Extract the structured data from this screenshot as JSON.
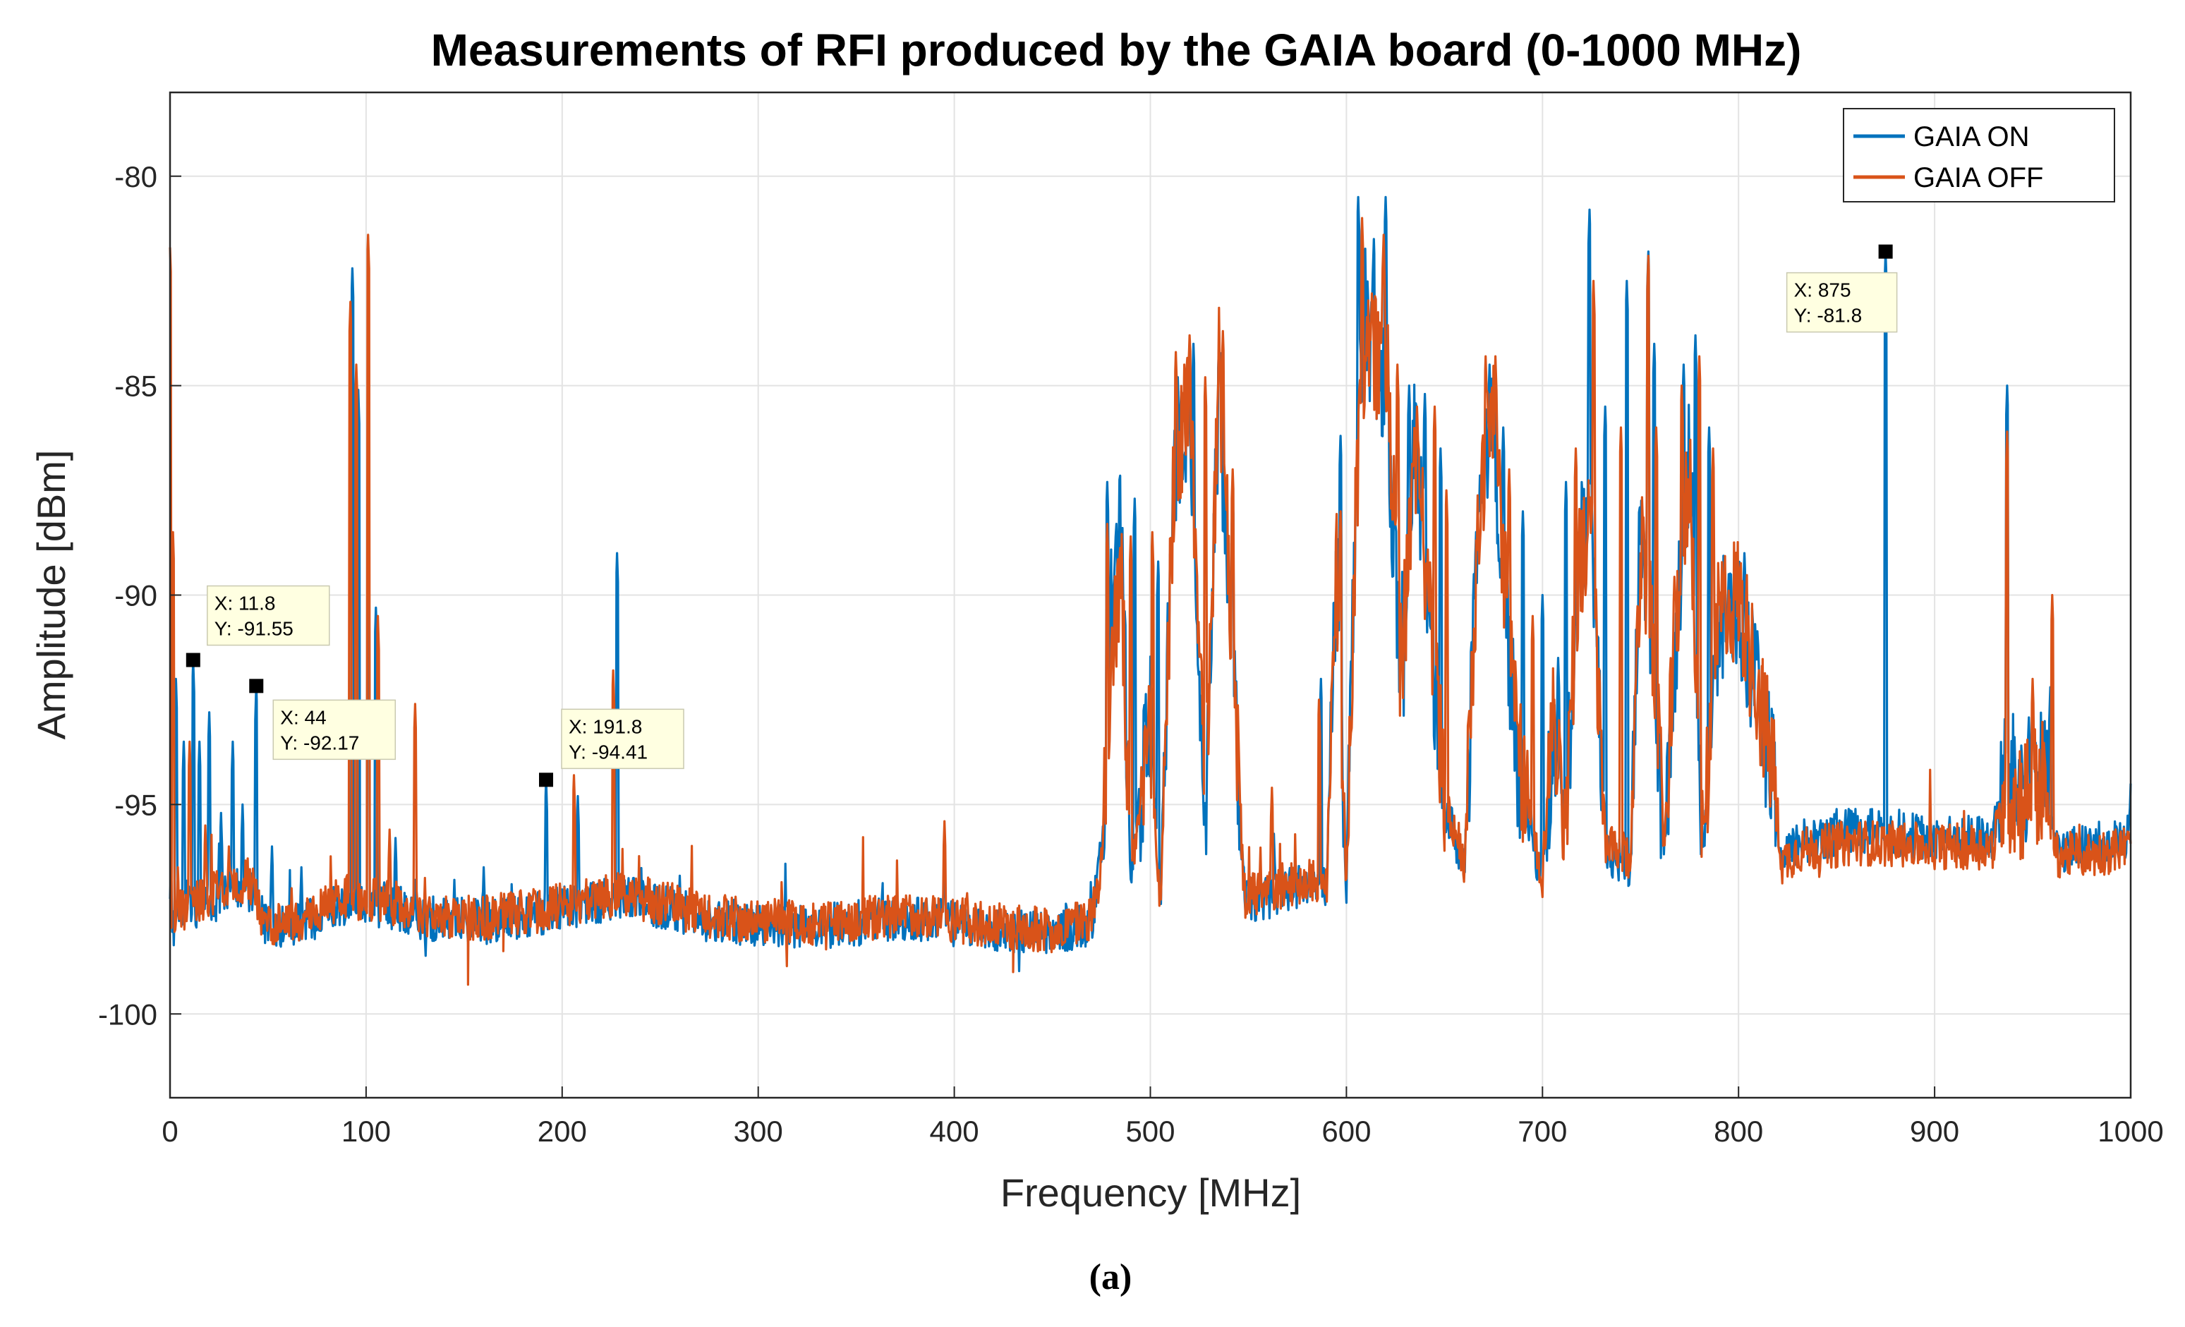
{
  "chart_data": {
    "type": "line",
    "title": "Measurements of RFI produced by the GAIA board (0-1000 MHz)",
    "xlabel": "Frequency [MHz]",
    "ylabel": "Amplitude [dBm]",
    "xlim": [
      0,
      1000
    ],
    "ylim": [
      -102,
      -78
    ],
    "xticks": [
      0,
      100,
      200,
      300,
      400,
      500,
      600,
      700,
      800,
      900,
      1000
    ],
    "yticks": [
      -80,
      -85,
      -90,
      -95,
      -100
    ],
    "grid": true,
    "legend_position": "top-right",
    "caption": "(a)",
    "series": [
      {
        "name": "GAIA ON",
        "color": "#0072BD",
        "baseline": [
          [
            0,
            -98.2
          ],
          [
            8,
            -97.5
          ],
          [
            20,
            -97.3
          ],
          [
            40,
            -97.0
          ],
          [
            50,
            -98.0
          ],
          [
            70,
            -97.8
          ],
          [
            90,
            -97.3
          ],
          [
            110,
            -97.4
          ],
          [
            130,
            -97.7
          ],
          [
            160,
            -97.8
          ],
          [
            190,
            -97.6
          ],
          [
            230,
            -97.2
          ],
          [
            280,
            -97.8
          ],
          [
            330,
            -97.9
          ],
          [
            380,
            -97.7
          ],
          [
            420,
            -98.0
          ],
          [
            450,
            -98.1
          ],
          [
            470,
            -97.8
          ],
          [
            475,
            -96.2
          ],
          [
            480,
            -90.5
          ],
          [
            485,
            -88.5
          ],
          [
            490,
            -96.5
          ],
          [
            500,
            -93.0
          ],
          [
            505,
            -97.5
          ],
          [
            512,
            -87.0
          ],
          [
            520,
            -85.5
          ],
          [
            528,
            -95.5
          ],
          [
            535,
            -85.0
          ],
          [
            540,
            -90.0
          ],
          [
            548,
            -97.3
          ],
          [
            560,
            -97.2
          ],
          [
            570,
            -97.0
          ],
          [
            590,
            -96.9
          ],
          [
            595,
            -89.0
          ],
          [
            600,
            -97.0
          ],
          [
            605,
            -87.0
          ],
          [
            610,
            -83.0
          ],
          [
            615,
            -85.0
          ],
          [
            620,
            -84.5
          ],
          [
            628,
            -92.5
          ],
          [
            635,
            -86.0
          ],
          [
            642,
            -90.5
          ],
          [
            650,
            -95.0
          ],
          [
            660,
            -96.5
          ],
          [
            668,
            -88.0
          ],
          [
            675,
            -86.0
          ],
          [
            680,
            -89.5
          ],
          [
            688,
            -94.5
          ],
          [
            700,
            -96.8
          ],
          [
            705,
            -93.5
          ],
          [
            712,
            -95.5
          ],
          [
            718,
            -89.0
          ],
          [
            725,
            -88.0
          ],
          [
            732,
            -96.2
          ],
          [
            745,
            -96.5
          ],
          [
            750,
            -88.0
          ],
          [
            756,
            -91.5
          ],
          [
            762,
            -96.2
          ],
          [
            768,
            -91.0
          ],
          [
            775,
            -86.5
          ],
          [
            782,
            -96.0
          ],
          [
            790,
            -90.8
          ],
          [
            800,
            -90.2
          ],
          [
            810,
            -92.5
          ],
          [
            818,
            -94.5
          ],
          [
            822,
            -96.5
          ],
          [
            830,
            -95.9
          ],
          [
            860,
            -95.6
          ],
          [
            900,
            -95.8
          ],
          [
            930,
            -95.8
          ],
          [
            935,
            -94.3
          ],
          [
            945,
            -94.5
          ],
          [
            955,
            -94.2
          ],
          [
            962,
            -96.1
          ],
          [
            980,
            -96.0
          ],
          [
            1000,
            -95.8
          ]
        ],
        "spikes": [
          [
            0.5,
            -96.5
          ],
          [
            3,
            -92.0
          ],
          [
            7,
            -93.5
          ],
          [
            11.8,
            -91.55
          ],
          [
            15,
            -93.5
          ],
          [
            20,
            -92.8
          ],
          [
            26,
            -95.2
          ],
          [
            32,
            -93.5
          ],
          [
            37,
            -95.0
          ],
          [
            44,
            -92.17
          ],
          [
            52,
            -96.0
          ],
          [
            67,
            -96.5
          ],
          [
            93,
            -82.2
          ],
          [
            96,
            -85.1
          ],
          [
            101,
            -88.0
          ],
          [
            105,
            -90.3
          ],
          [
            115,
            -95.8
          ],
          [
            125,
            -96.8
          ],
          [
            145,
            -96.8
          ],
          [
            160,
            -96.5
          ],
          [
            191.8,
            -94.41
          ],
          [
            208,
            -94.8
          ],
          [
            228,
            -89.0
          ],
          [
            260,
            -96.7
          ],
          [
            395,
            -96.3
          ],
          [
            478,
            -87.3
          ],
          [
            492,
            -87.7
          ],
          [
            504,
            -89.2
          ],
          [
            514,
            -84.8
          ],
          [
            522,
            -84.0
          ],
          [
            535,
            -84.0
          ],
          [
            542,
            -87.6
          ],
          [
            563,
            -95.7
          ],
          [
            587,
            -92.0
          ],
          [
            597,
            -86.2
          ],
          [
            606,
            -80.5
          ],
          [
            614,
            -81.5
          ],
          [
            620,
            -80.5
          ],
          [
            632,
            -85.0
          ],
          [
            640,
            -85.2
          ],
          [
            648,
            -86.5
          ],
          [
            665,
            -89.5
          ],
          [
            673,
            -84.5
          ],
          [
            680,
            -86.0
          ],
          [
            690,
            -88.0
          ],
          [
            700,
            -90.0
          ],
          [
            708,
            -91.5
          ],
          [
            712,
            -87.3
          ],
          [
            724,
            -80.8
          ],
          [
            732,
            -85.5
          ],
          [
            743,
            -82.5
          ],
          [
            754,
            -81.8
          ],
          [
            757,
            -84.0
          ],
          [
            772,
            -84.5
          ],
          [
            778,
            -83.8
          ],
          [
            785,
            -86.0
          ],
          [
            795,
            -89.5
          ],
          [
            803,
            -89.0
          ],
          [
            815,
            -93.0
          ],
          [
            875,
            -81.8
          ],
          [
            937,
            -85.0
          ],
          [
            950,
            -92.5
          ],
          [
            959,
            -92.2
          ],
          [
            998,
            -95.7
          ],
          [
            1000,
            -94.5
          ]
        ]
      },
      {
        "name": "GAIA OFF",
        "color": "#D95319",
        "baseline": [
          [
            0,
            -98.0
          ],
          [
            8,
            -97.4
          ],
          [
            20,
            -97.2
          ],
          [
            40,
            -96.8
          ],
          [
            50,
            -98.0
          ],
          [
            70,
            -97.7
          ],
          [
            90,
            -97.2
          ],
          [
            110,
            -97.3
          ],
          [
            130,
            -97.6
          ],
          [
            160,
            -97.7
          ],
          [
            190,
            -97.5
          ],
          [
            230,
            -97.1
          ],
          [
            280,
            -97.7
          ],
          [
            330,
            -97.8
          ],
          [
            380,
            -97.6
          ],
          [
            420,
            -97.9
          ],
          [
            450,
            -98.0
          ],
          [
            470,
            -97.7
          ],
          [
            475,
            -96.4
          ],
          [
            480,
            -91.5
          ],
          [
            485,
            -89.5
          ],
          [
            490,
            -96.6
          ],
          [
            500,
            -93.5
          ],
          [
            505,
            -97.4
          ],
          [
            512,
            -87.2
          ],
          [
            520,
            -85.0
          ],
          [
            528,
            -95.0
          ],
          [
            535,
            -84.5
          ],
          [
            540,
            -89.5
          ],
          [
            548,
            -97.2
          ],
          [
            560,
            -97.1
          ],
          [
            570,
            -96.9
          ],
          [
            590,
            -96.8
          ],
          [
            595,
            -89.5
          ],
          [
            600,
            -96.9
          ],
          [
            605,
            -87.5
          ],
          [
            610,
            -83.5
          ],
          [
            615,
            -84.5
          ],
          [
            620,
            -84.0
          ],
          [
            628,
            -92.0
          ],
          [
            635,
            -86.5
          ],
          [
            642,
            -90.0
          ],
          [
            650,
            -94.8
          ],
          [
            660,
            -96.4
          ],
          [
            668,
            -87.5
          ],
          [
            675,
            -85.5
          ],
          [
            680,
            -89.0
          ],
          [
            688,
            -94.0
          ],
          [
            700,
            -96.7
          ],
          [
            705,
            -93.0
          ],
          [
            712,
            -95.2
          ],
          [
            718,
            -89.5
          ],
          [
            725,
            -88.5
          ],
          [
            732,
            -96.0
          ],
          [
            745,
            -96.3
          ],
          [
            750,
            -88.5
          ],
          [
            756,
            -91.0
          ],
          [
            762,
            -96.0
          ],
          [
            768,
            -90.5
          ],
          [
            775,
            -87.0
          ],
          [
            782,
            -95.8
          ],
          [
            790,
            -90.5
          ],
          [
            800,
            -90.0
          ],
          [
            810,
            -92.3
          ],
          [
            818,
            -94.3
          ],
          [
            822,
            -96.4
          ],
          [
            830,
            -96.1
          ],
          [
            860,
            -95.9
          ],
          [
            900,
            -96.0
          ],
          [
            930,
            -96.0
          ],
          [
            935,
            -94.8
          ],
          [
            945,
            -94.8
          ],
          [
            955,
            -94.5
          ],
          [
            962,
            -96.2
          ],
          [
            980,
            -96.2
          ],
          [
            1000,
            -96.0
          ]
        ],
        "spikes": [
          [
            0,
            -81.7
          ],
          [
            1.5,
            -88.5
          ],
          [
            4,
            -96.5
          ],
          [
            10,
            -93.5
          ],
          [
            18,
            -95.5
          ],
          [
            30,
            -96.0
          ],
          [
            44,
            -96.8
          ],
          [
            62,
            -97.0
          ],
          [
            92,
            -83.0
          ],
          [
            95,
            -84.5
          ],
          [
            101,
            -81.4
          ],
          [
            106,
            -90.5
          ],
          [
            112,
            -95.6
          ],
          [
            125,
            -92.6
          ],
          [
            152,
            -99.3
          ],
          [
            170,
            -98.5
          ],
          [
            206,
            -94.3
          ],
          [
            226,
            -91.8
          ],
          [
            260,
            -97.0
          ],
          [
            395,
            -95.4
          ],
          [
            430,
            -99.0
          ],
          [
            478,
            -88.3
          ],
          [
            490,
            -88.6
          ],
          [
            501,
            -88.5
          ],
          [
            513,
            -84.2
          ],
          [
            520,
            -83.8
          ],
          [
            528,
            -84.8
          ],
          [
            537,
            -83.7
          ],
          [
            542,
            -87.0
          ],
          [
            562,
            -94.6
          ],
          [
            586,
            -92.5
          ],
          [
            597,
            -88.0
          ],
          [
            608,
            -81.0
          ],
          [
            613,
            -82.8
          ],
          [
            619,
            -81.4
          ],
          [
            626,
            -84.5
          ],
          [
            636,
            -85.5
          ],
          [
            645,
            -85.5
          ],
          [
            651,
            -87.5
          ],
          [
            671,
            -84.3
          ],
          [
            676,
            -84.3
          ],
          [
            683,
            -87.0
          ],
          [
            695,
            -90.5
          ],
          [
            706,
            -92.5
          ],
          [
            717,
            -86.5
          ],
          [
            726,
            -82.5
          ],
          [
            740,
            -86.0
          ],
          [
            754,
            -81.9
          ],
          [
            758,
            -86.0
          ],
          [
            771,
            -85.0
          ],
          [
            780,
            -84.3
          ],
          [
            787,
            -86.5
          ],
          [
            795,
            -90.0
          ],
          [
            805,
            -90.5
          ],
          [
            812,
            -93.0
          ],
          [
            868,
            -96.0
          ],
          [
            937,
            -86.1
          ],
          [
            950,
            -92.0
          ],
          [
            960,
            -90.0
          ],
          [
            993,
            -96.0
          ]
        ]
      }
    ],
    "annotations": [
      {
        "x": 11.8,
        "y": -91.55,
        "label_x": "X: 11.8",
        "label_y": "Y: -91.55"
      },
      {
        "x": 44,
        "y": -92.17,
        "label_x": "X: 44",
        "label_y": "Y: -92.17"
      },
      {
        "x": 191.8,
        "y": -94.41,
        "label_x": "X: 191.8",
        "label_y": "Y: -94.41"
      },
      {
        "x": 875,
        "y": -81.8,
        "label_x": "X: 875",
        "label_y": "Y: -81.8"
      }
    ]
  }
}
